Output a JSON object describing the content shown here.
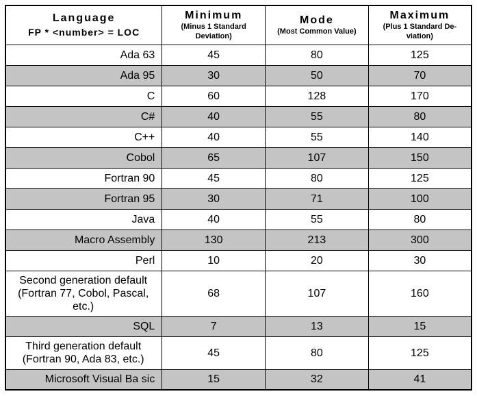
{
  "chart_data": {
    "type": "table",
    "header": {
      "language": {
        "title": "Language",
        "subtitle": "FP * <number> = LOC"
      },
      "minimum": {
        "title": "Minimum",
        "subtitle": "(Minus 1 Standard Deviation)"
      },
      "mode": {
        "title": "Mode",
        "subtitle": "(Most Common Value)"
      },
      "maximum": {
        "title": "Maximum",
        "subtitle": "(Plus 1 Standard De-viation)"
      }
    },
    "rows": [
      {
        "language": "Ada 63",
        "minimum": 45,
        "mode": 80,
        "maximum": 125,
        "shaded": false
      },
      {
        "language": "Ada 95",
        "minimum": 30,
        "mode": 50,
        "maximum": 70,
        "shaded": true
      },
      {
        "language": "C",
        "minimum": 60,
        "mode": 128,
        "maximum": 170,
        "shaded": false
      },
      {
        "language": "C#",
        "minimum": 40,
        "mode": 55,
        "maximum": 80,
        "shaded": true
      },
      {
        "language": "C++",
        "minimum": 40,
        "mode": 55,
        "maximum": 140,
        "shaded": false
      },
      {
        "language": "Cobol",
        "minimum": 65,
        "mode": 107,
        "maximum": 150,
        "shaded": true
      },
      {
        "language": "Fortran 90",
        "minimum": 45,
        "mode": 80,
        "maximum": 125,
        "shaded": false
      },
      {
        "language": "Fortran 95",
        "minimum": 30,
        "mode": 71,
        "maximum": 100,
        "shaded": true
      },
      {
        "language": "Java",
        "minimum": 40,
        "mode": 55,
        "maximum": 80,
        "shaded": false
      },
      {
        "language": "Macro Assembly",
        "minimum": 130,
        "mode": 213,
        "maximum": 300,
        "shaded": true
      },
      {
        "language": "Perl",
        "minimum": 10,
        "mode": 20,
        "maximum": 30,
        "shaded": false
      },
      {
        "language": "Second generation default (Fortran 77, Cobol, Pascal, etc.)",
        "minimum": 68,
        "mode": 107,
        "maximum": 160,
        "shaded": false
      },
      {
        "language": "SQL",
        "minimum": 7,
        "mode": 13,
        "maximum": 15,
        "shaded": true
      },
      {
        "language": "Third generation default (Fortran 90, Ada 83, etc.)",
        "minimum": 45,
        "mode": 80,
        "maximum": 125,
        "shaded": false
      },
      {
        "language": "Microsoft Visual Ba sic",
        "minimum": 15,
        "mode": 32,
        "maximum": 41,
        "shaded": true
      }
    ]
  },
  "colors": {
    "background": "#ffffff",
    "text": "#000000",
    "border": "#000000",
    "shaded_row": "#c4c4c4"
  }
}
